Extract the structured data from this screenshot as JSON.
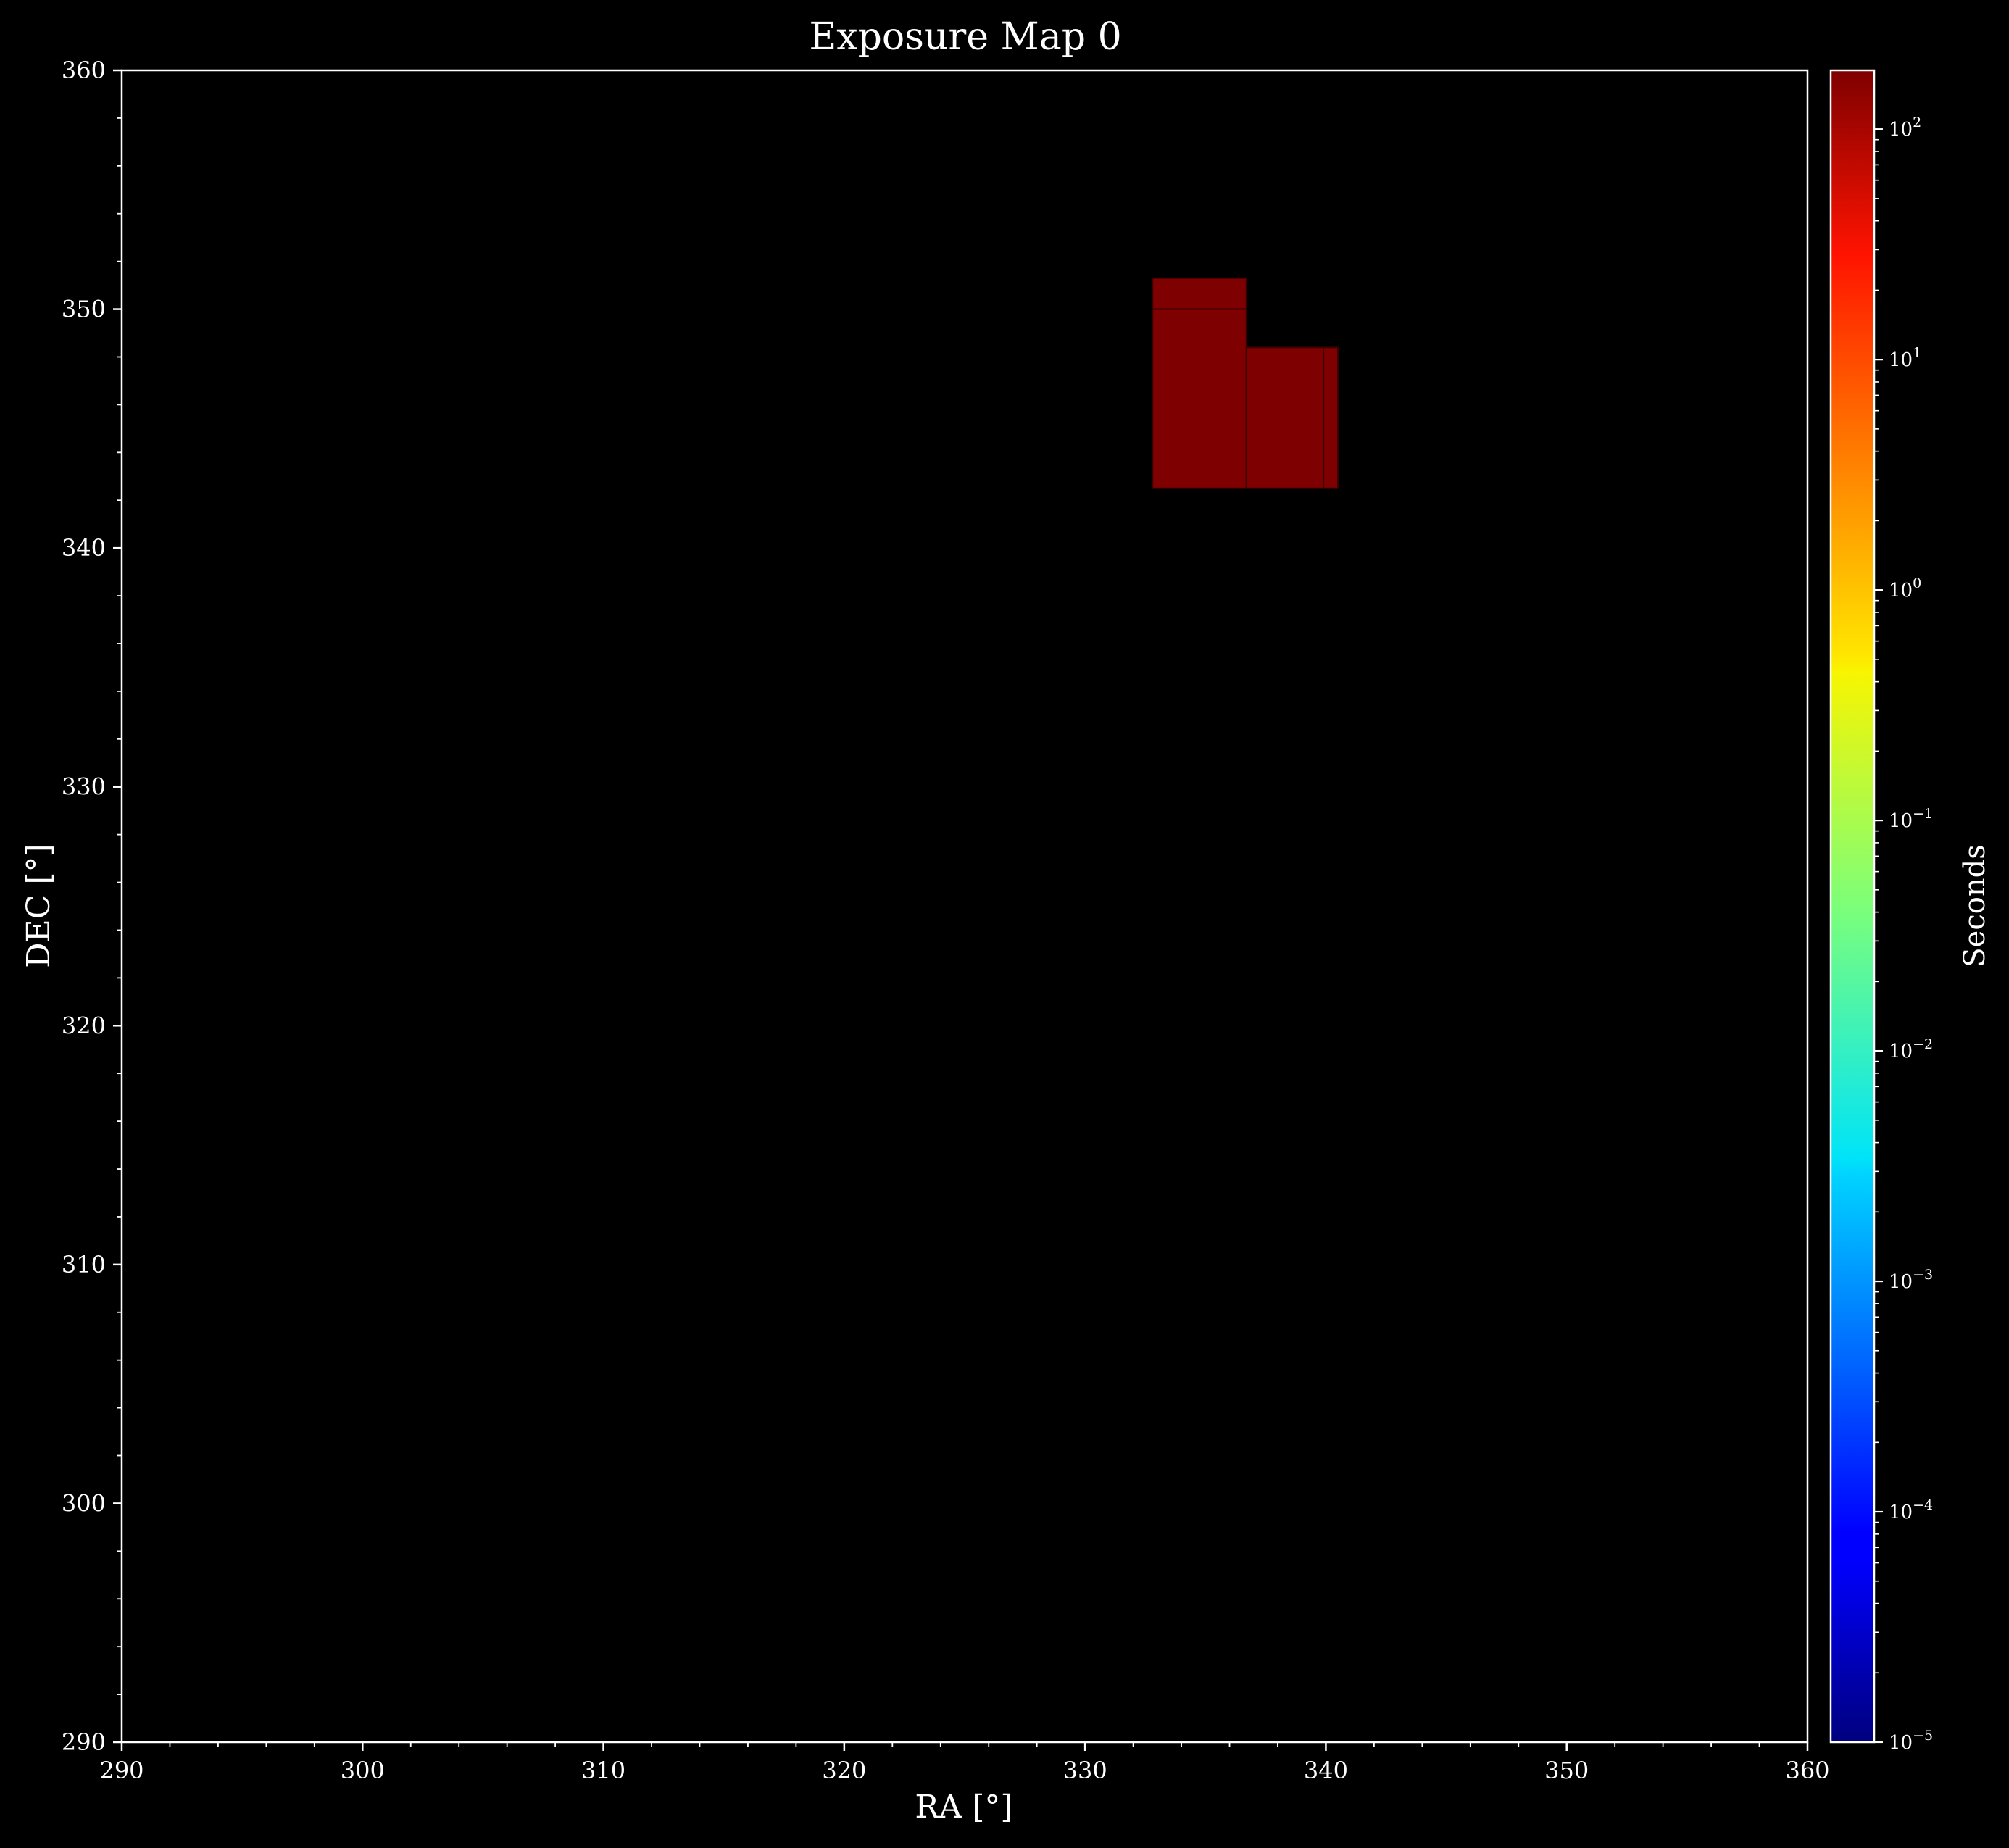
{
  "chart_data": {
    "type": "heatmap",
    "title": "Exposure Map 0",
    "xlabel": "RA [°]",
    "ylabel": "DEC [°]",
    "xlim": [
      290,
      360
    ],
    "ylim": [
      290,
      360
    ],
    "xticks": [
      290,
      300,
      310,
      320,
      330,
      340,
      350,
      360
    ],
    "yticks": [
      290,
      300,
      310,
      320,
      330,
      340,
      350,
      360
    ],
    "grid": false,
    "background_color": "#000000",
    "exposure_regions": [
      {
        "ra": [
          332.8,
          336.7
        ],
        "dec": [
          350.0,
          351.3
        ],
        "value_seconds": 180
      },
      {
        "ra": [
          332.8,
          336.7
        ],
        "dec": [
          342.5,
          350.0
        ],
        "value_seconds": 180
      },
      {
        "ra": [
          336.7,
          339.9
        ],
        "dec": [
          342.5,
          348.4
        ],
        "value_seconds": 180
      },
      {
        "ra": [
          339.9,
          340.5
        ],
        "dec": [
          342.5,
          348.4
        ],
        "value_seconds": 180
      }
    ],
    "region_color": "#7f0000",
    "colorbar": {
      "label": "Seconds",
      "scale": "log",
      "colormap": "jet",
      "vmin": 1e-05,
      "vmax": 180,
      "ticks": [
        {
          "value": 1e-05,
          "base": "10",
          "exp": "−5"
        },
        {
          "value": 0.0001,
          "base": "10",
          "exp": "−4"
        },
        {
          "value": 0.001,
          "base": "10",
          "exp": "−3"
        },
        {
          "value": 0.01,
          "base": "10",
          "exp": "−2"
        },
        {
          "value": 0.1,
          "base": "10",
          "exp": "−1"
        },
        {
          "value": 1,
          "base": "10",
          "exp": "0"
        },
        {
          "value": 10,
          "base": "10",
          "exp": "1"
        },
        {
          "value": 100,
          "base": "10",
          "exp": "2"
        }
      ]
    }
  }
}
